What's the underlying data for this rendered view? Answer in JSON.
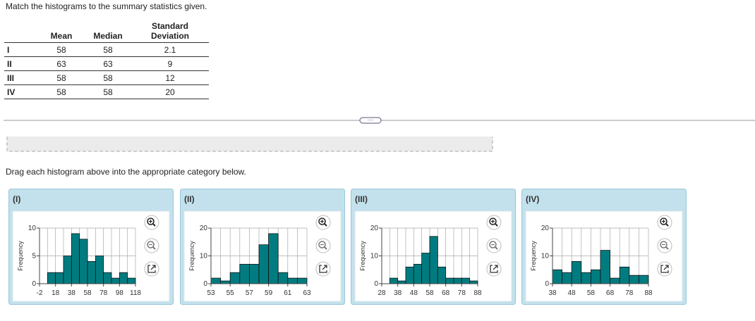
{
  "instruction": "Match the histograms to the summary statistics given.",
  "table": {
    "headers": [
      "Mean",
      "Median",
      "Standard Deviation"
    ],
    "rows": [
      [
        "I",
        "58",
        "58",
        "2.1"
      ],
      [
        "II",
        "63",
        "63",
        "9"
      ],
      [
        "III",
        "58",
        "58",
        "12"
      ],
      [
        "IV",
        "58",
        "58",
        "20"
      ]
    ]
  },
  "drag_instruction": "Drag each histogram above into the appropriate category below.",
  "bar_color": "#007c80",
  "panels": [
    {
      "label": "(I)",
      "histogram": {
        "ylabel": "Frequency",
        "bins": [
          -2,
          8,
          18,
          28,
          38,
          48,
          58,
          68,
          78,
          88,
          98,
          108,
          118
        ],
        "counts": [
          0,
          2,
          2,
          5,
          9,
          8,
          4,
          5,
          2,
          1,
          2,
          1
        ],
        "xlim": [
          -2,
          118
        ],
        "xticks": [
          -2,
          18,
          38,
          58,
          78,
          98,
          118
        ],
        "ylim": [
          0,
          10
        ],
        "yticks": [
          0,
          5,
          10
        ]
      }
    },
    {
      "label": "(II)",
      "histogram": {
        "ylabel": "Frequency",
        "bins": [
          53,
          54,
          55,
          56,
          57,
          58,
          59,
          60,
          61,
          62,
          63
        ],
        "counts": [
          2,
          1,
          4,
          7,
          7,
          14,
          18,
          4,
          2,
          2
        ],
        "xlim": [
          53,
          63
        ],
        "xticks": [
          53,
          55,
          57,
          59,
          61,
          63
        ],
        "ylim": [
          0,
          20
        ],
        "yticks": [
          0,
          10,
          20
        ]
      }
    },
    {
      "label": "(III)",
      "histogram": {
        "ylabel": "Frequency",
        "bins": [
          28,
          33,
          38,
          43,
          48,
          53,
          58,
          63,
          68,
          73,
          78,
          83,
          88
        ],
        "counts": [
          0,
          2,
          1,
          6,
          7,
          11,
          17,
          6,
          2,
          2,
          2,
          1
        ],
        "xlim": [
          28,
          88
        ],
        "xticks": [
          28,
          38,
          48,
          58,
          68,
          78,
          88
        ],
        "ylim": [
          0,
          20
        ],
        "yticks": [
          0,
          10,
          20
        ]
      }
    },
    {
      "label": "(IV)",
      "histogram": {
        "ylabel": "Frequency",
        "bins": [
          38,
          43,
          48,
          53,
          58,
          63,
          68,
          73,
          78,
          83,
          88
        ],
        "counts": [
          5,
          4,
          8,
          4,
          5,
          12,
          2,
          6,
          3,
          3
        ],
        "xlim": [
          38,
          88
        ],
        "xticks": [
          38,
          48,
          58,
          68,
          78,
          88
        ],
        "ylim": [
          0,
          20
        ],
        "yticks": [
          0,
          10,
          20
        ]
      }
    }
  ]
}
